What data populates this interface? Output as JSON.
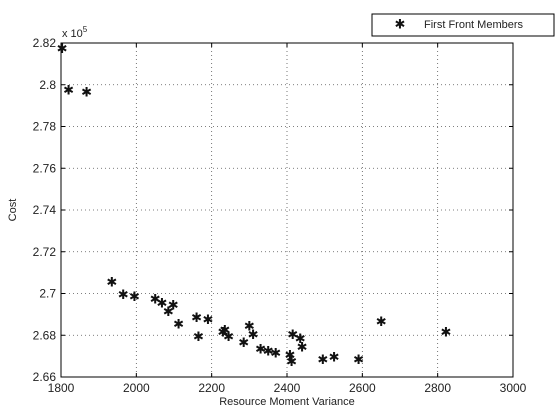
{
  "chart_data": {
    "type": "scatter",
    "xlabel": "Resource Moment Variance",
    "ylabel": "Cost",
    "y_scale_note": "x 10",
    "y_scale_exp": "5",
    "xlim": [
      1800,
      3000
    ],
    "ylim": [
      2.66,
      2.82
    ],
    "x_ticks": [
      "1800",
      "2000",
      "2200",
      "2400",
      "2600",
      "2800",
      "3000"
    ],
    "y_ticks": [
      "2.66",
      "2.68",
      "2.7",
      "2.72",
      "2.74",
      "2.76",
      "2.78",
      "2.8",
      "2.82"
    ],
    "grid": true,
    "legend_position": "top-right",
    "marker_glyph": "✱",
    "series": [
      {
        "name": "First Front Members",
        "points": [
          [
            1803,
            2.817
          ],
          [
            1820,
            2.797
          ],
          [
            1868,
            2.796
          ],
          [
            1935,
            2.705
          ],
          [
            1965,
            2.699
          ],
          [
            1995,
            2.698
          ],
          [
            2050,
            2.697
          ],
          [
            2068,
            2.695
          ],
          [
            2085,
            2.691
          ],
          [
            2098,
            2.694
          ],
          [
            2112,
            2.685
          ],
          [
            2160,
            2.688
          ],
          [
            2165,
            2.679
          ],
          [
            2190,
            2.687
          ],
          [
            2230,
            2.681
          ],
          [
            2235,
            2.682
          ],
          [
            2245,
            2.679
          ],
          [
            2285,
            2.676
          ],
          [
            2300,
            2.684
          ],
          [
            2310,
            2.68
          ],
          [
            2330,
            2.673
          ],
          [
            2350,
            2.672
          ],
          [
            2370,
            2.671
          ],
          [
            2408,
            2.67
          ],
          [
            2412,
            2.667
          ],
          [
            2415,
            2.68
          ],
          [
            2435,
            2.678
          ],
          [
            2440,
            2.674
          ],
          [
            2495,
            2.668
          ],
          [
            2525,
            2.669
          ],
          [
            2590,
            2.668
          ],
          [
            2650,
            2.686
          ],
          [
            2822,
            2.681
          ]
        ]
      }
    ]
  }
}
